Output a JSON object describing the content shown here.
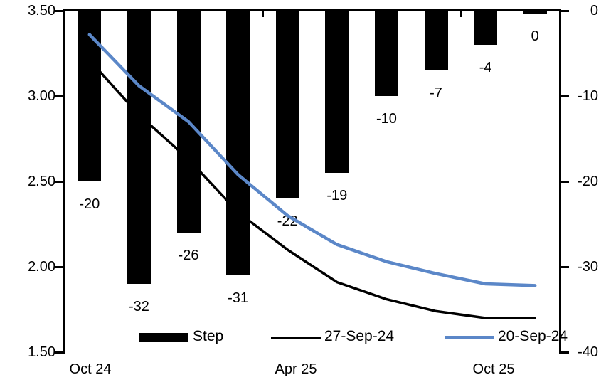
{
  "chart_data": {
    "type": "bar+line combo",
    "title": "",
    "x_axis": {
      "tick_labels": [
        "Oct 24",
        "Apr 25",
        "Oct 25"
      ],
      "tick_label_bar_index": [
        0,
        4,
        8
      ],
      "n_categories": 10
    },
    "left_axis": {
      "min": 1.5,
      "max": 3.5,
      "ticks": [
        {
          "label": "3.50",
          "value": 3.5
        },
        {
          "label": "3.00",
          "value": 3.0
        },
        {
          "label": "2.50",
          "value": 2.5
        },
        {
          "label": "2.00",
          "value": 2.0
        },
        {
          "label": "1.50",
          "value": 1.5
        }
      ]
    },
    "right_axis": {
      "min": -40,
      "max": 0,
      "ticks": [
        {
          "label": "0",
          "value": 0
        },
        {
          "label": "-10",
          "value": -10
        },
        {
          "label": "-20",
          "value": -20
        },
        {
          "label": "-30",
          "value": -30
        },
        {
          "label": "-40",
          "value": -40
        }
      ]
    },
    "series": [
      {
        "name": "Step",
        "type": "bar",
        "axis": "right",
        "color": "#000000",
        "values": [
          -20,
          -32,
          -26,
          -31,
          -22,
          -19,
          -10,
          -7,
          -4,
          0
        ],
        "data_labels": [
          "-20",
          "-32",
          "-26",
          "-31",
          "-22",
          "-19",
          "-10",
          "-7",
          "-4",
          "0"
        ]
      },
      {
        "name": "27-Sep-24",
        "type": "line",
        "axis": "left",
        "color": "#000000",
        "values": [
          3.21,
          2.89,
          2.63,
          2.32,
          2.1,
          1.91,
          1.81,
          1.74,
          1.7,
          1.7
        ]
      },
      {
        "name": "20-Sep-24",
        "type": "line",
        "axis": "left",
        "color": "#5B87C8",
        "values": [
          3.36,
          3.06,
          2.85,
          2.54,
          2.3,
          2.13,
          2.03,
          1.96,
          1.9,
          1.89
        ]
      }
    ],
    "legend": {
      "position": "bottom-inside",
      "entries": [
        "Step",
        "27-Sep-24",
        "20-Sep-24"
      ]
    },
    "grid": "off"
  }
}
